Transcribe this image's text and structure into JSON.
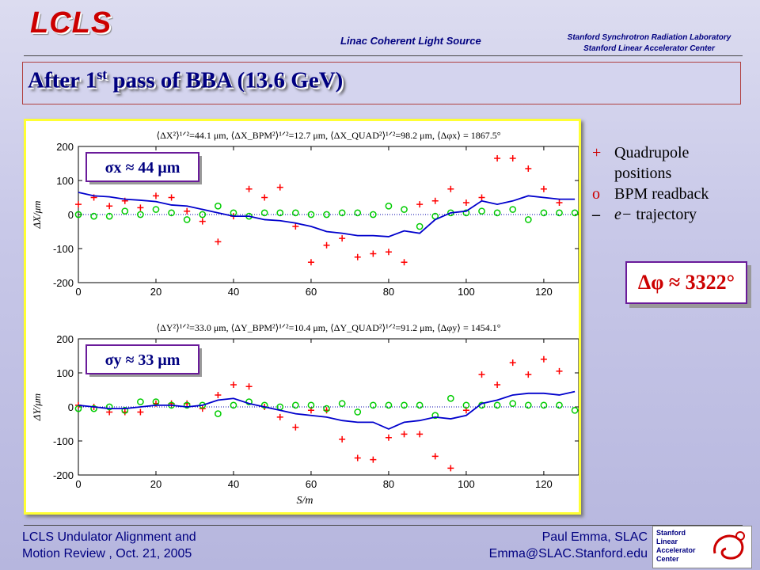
{
  "header": {
    "logo": "LCLS",
    "center": "Linac Coherent Light Source",
    "right_line1": "Stanford Synchrotron Radiation Laboratory",
    "right_line2": "Stanford Linear Accelerator Center"
  },
  "title": {
    "main": "After 1",
    "sup": "st",
    "rest": " pass of BBA (13.6 GeV)"
  },
  "legend": {
    "quad_mark": "+",
    "quad_label_1": "Quadrupole",
    "quad_label_2": "positions",
    "bpm_mark": "o",
    "bpm_label": "BPM readback",
    "traj_mark": "–",
    "traj_label_e": "e−",
    "traj_label": " trajectory"
  },
  "dphi_label": "Δφ ≈ 3322°",
  "footer": {
    "left_line1": "LCLS Undulator Alignment and",
    "left_line2": "Motion Review , Oct. 21, 2005",
    "right_line1": "Paul Emma, SLAC",
    "right_line2": "Emma@SLAC.Stanford.edu",
    "logo_lines": [
      "Stanford",
      "Linear",
      "Accelerator",
      "Center"
    ]
  },
  "colors": {
    "quad": "#ff0000",
    "bpm": "#00cc00",
    "trajectory": "#0000cc",
    "title": "#000080"
  },
  "chart_data": [
    {
      "type": "scatter",
      "header": "⟨ΔX²⟩¹ᐟ²=44.1 μm, ⟨ΔX_BPM²⟩¹ᐟ²=12.7 μm, ⟨ΔX_QUAD²⟩¹ᐟ²=98.2 μm, ⟨Δφx⟩ = 1867.5°",
      "ylabel": "ΔX/μm",
      "xlabel": "",
      "badge": "σx ≈ 44 μm",
      "xlim": [
        0,
        129
      ],
      "ylim": [
        -200,
        200
      ],
      "xticks": [
        0,
        20,
        40,
        60,
        80,
        100,
        120
      ],
      "yticks": [
        -200,
        -100,
        0,
        100,
        200
      ],
      "series": [
        {
          "name": "Quadrupole positions",
          "marker": "plus",
          "x": [
            0,
            4,
            8,
            12,
            16,
            20,
            24,
            28,
            32,
            36,
            40,
            44,
            48,
            52,
            56,
            60,
            64,
            68,
            72,
            76,
            80,
            84,
            88,
            92,
            96,
            100,
            104,
            108,
            112,
            116,
            120,
            124
          ],
          "y": [
            30,
            50,
            25,
            40,
            20,
            55,
            50,
            10,
            -20,
            -80,
            -5,
            75,
            50,
            80,
            -35,
            -140,
            -90,
            -70,
            -125,
            -115,
            -110,
            -140,
            30,
            40,
            75,
            35,
            50,
            165,
            165,
            135,
            75,
            35
          ]
        },
        {
          "name": "BPM readback",
          "marker": "circle",
          "x": [
            0,
            4,
            8,
            12,
            16,
            20,
            24,
            28,
            32,
            36,
            40,
            44,
            48,
            52,
            56,
            60,
            64,
            68,
            72,
            76,
            80,
            84,
            88,
            92,
            96,
            100,
            104,
            108,
            112,
            116,
            120,
            124,
            128
          ],
          "y": [
            0,
            -5,
            -5,
            10,
            0,
            15,
            5,
            -15,
            0,
            25,
            5,
            -5,
            5,
            5,
            5,
            0,
            0,
            5,
            5,
            0,
            25,
            15,
            -35,
            -5,
            5,
            5,
            10,
            5,
            15,
            -15,
            5,
            5,
            5
          ]
        },
        {
          "name": "e− trajectory",
          "marker": "line",
          "x": [
            0,
            4,
            8,
            12,
            16,
            20,
            24,
            28,
            32,
            36,
            40,
            44,
            48,
            52,
            56,
            60,
            64,
            68,
            72,
            76,
            80,
            84,
            88,
            92,
            96,
            100,
            104,
            108,
            112,
            116,
            120,
            124,
            128
          ],
          "y": [
            65,
            55,
            52,
            45,
            42,
            38,
            28,
            25,
            15,
            5,
            -5,
            -5,
            -15,
            -18,
            -25,
            -35,
            -50,
            -55,
            -62,
            -62,
            -65,
            -48,
            -55,
            -15,
            5,
            10,
            40,
            30,
            40,
            55,
            50,
            45,
            45
          ]
        }
      ]
    },
    {
      "type": "scatter",
      "header": "⟨ΔY²⟩¹ᐟ²=33.0 μm, ⟨ΔY_BPM²⟩¹ᐟ²=10.4 μm, ⟨ΔY_QUAD²⟩¹ᐟ²=91.2 μm, ⟨Δφy⟩ = 1454.1°",
      "ylabel": "ΔY/μm",
      "xlabel": "S/m",
      "badge": "σy ≈ 33 μm",
      "xlim": [
        0,
        129
      ],
      "ylim": [
        -200,
        200
      ],
      "xticks": [
        0,
        20,
        40,
        60,
        80,
        100,
        120
      ],
      "yticks": [
        -200,
        -100,
        0,
        100,
        200
      ],
      "series": [
        {
          "name": "Quadrupole positions",
          "marker": "plus",
          "x": [
            0,
            4,
            8,
            12,
            16,
            20,
            24,
            28,
            32,
            36,
            40,
            44,
            48,
            52,
            56,
            60,
            64,
            68,
            72,
            76,
            80,
            84,
            88,
            92,
            96,
            100,
            104,
            108,
            112,
            116,
            120,
            124
          ],
          "y": [
            5,
            0,
            -15,
            -15,
            -15,
            10,
            10,
            10,
            -5,
            35,
            65,
            60,
            0,
            -30,
            -60,
            -10,
            -10,
            -95,
            -150,
            -155,
            -90,
            -80,
            -80,
            -145,
            -180,
            -10,
            95,
            65,
            130,
            95,
            140,
            105
          ]
        },
        {
          "name": "BPM readback",
          "marker": "circle",
          "x": [
            0,
            4,
            8,
            12,
            16,
            20,
            24,
            28,
            32,
            36,
            40,
            44,
            48,
            52,
            56,
            60,
            64,
            68,
            72,
            76,
            80,
            84,
            88,
            92,
            96,
            100,
            104,
            108,
            112,
            116,
            120,
            124,
            128
          ],
          "y": [
            -5,
            -5,
            0,
            -10,
            15,
            15,
            5,
            5,
            5,
            -20,
            5,
            15,
            5,
            0,
            5,
            5,
            -5,
            10,
            -15,
            5,
            5,
            5,
            5,
            -25,
            25,
            5,
            5,
            5,
            10,
            5,
            5,
            5,
            -10
          ]
        },
        {
          "name": "e− trajectory",
          "marker": "line",
          "x": [
            0,
            4,
            8,
            12,
            16,
            20,
            24,
            28,
            32,
            36,
            40,
            44,
            48,
            52,
            56,
            60,
            64,
            68,
            72,
            76,
            80,
            84,
            88,
            92,
            96,
            100,
            104,
            108,
            112,
            116,
            120,
            124,
            128
          ],
          "y": [
            5,
            0,
            -5,
            -5,
            0,
            5,
            5,
            0,
            5,
            20,
            25,
            10,
            0,
            -10,
            -20,
            -25,
            -30,
            -40,
            -45,
            -45,
            -65,
            -45,
            -40,
            -30,
            -35,
            -25,
            10,
            20,
            35,
            40,
            40,
            35,
            45
          ]
        }
      ]
    }
  ]
}
